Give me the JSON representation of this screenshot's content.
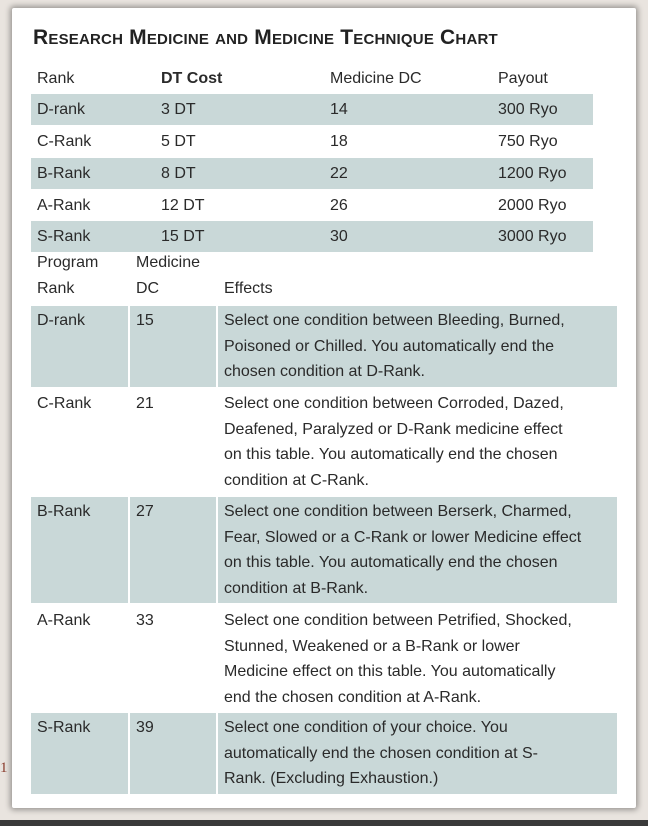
{
  "title": "Research Medicine and Medicine Technique Chart",
  "page_number": "1",
  "cost_table": {
    "headers": {
      "rank": "Rank",
      "dt_cost": "DT Cost",
      "medicine_dc": "Medicine DC",
      "payout": "Payout"
    },
    "rows": [
      {
        "rank": "D-rank",
        "dt_cost": "3 DT",
        "medicine_dc": "14",
        "payout": "300 Ryo"
      },
      {
        "rank": "C-Rank",
        "dt_cost": "5 DT",
        "medicine_dc": "18",
        "payout": "750 Ryo"
      },
      {
        "rank": "B-Rank",
        "dt_cost": "8 DT",
        "medicine_dc": "22",
        "payout": "1200 Ryo"
      },
      {
        "rank": "A-Rank",
        "dt_cost": "12 DT",
        "medicine_dc": "26",
        "payout": "2000 Ryo"
      },
      {
        "rank": "S-Rank",
        "dt_cost": "15 DT",
        "medicine_dc": "30",
        "payout": "3000 Ryo"
      }
    ]
  },
  "effects_table": {
    "headers": {
      "program_rank_line1": "Program",
      "program_rank_line2": "Rank",
      "medicine_dc_line1": "Medicine",
      "medicine_dc_line2": "DC",
      "effects": "Effects"
    },
    "rows": [
      {
        "rank": "D-rank",
        "dc": "15",
        "effect_lines": [
          "Select one condition between Bleeding, Burned,",
          "Poisoned or Chilled. You automatically end the",
          "chosen condition at D-Rank."
        ]
      },
      {
        "rank": "C-Rank",
        "dc": "21",
        "effect_lines": [
          "Select one condition between Corroded, Dazed,",
          "Deafened, Paralyzed or D-Rank medicine effect",
          "on this table. You automatically end the chosen",
          "condition at C-Rank."
        ]
      },
      {
        "rank": "B-Rank",
        "dc": "27",
        "effect_lines": [
          "Select one condition between Berserk, Charmed,",
          "Fear, Slowed or a C-Rank or lower Medicine effect",
          "on this table. You automatically end the chosen",
          "condition at B-Rank."
        ]
      },
      {
        "rank": "A-Rank",
        "dc": "33",
        "effect_lines": [
          "Select one condition between Petrified, Shocked,",
          "Stunned, Weakened or a B-Rank or lower",
          "Medicine effect on this table. You automatically",
          "end the chosen condition at A-Rank."
        ]
      },
      {
        "rank": "S-Rank",
        "dc": "39",
        "effect_lines": [
          "Select one condition of your choice. You",
          "automatically end the chosen condition at S-",
          "Rank. (Excluding Exhaustion.)"
        ]
      }
    ]
  }
}
